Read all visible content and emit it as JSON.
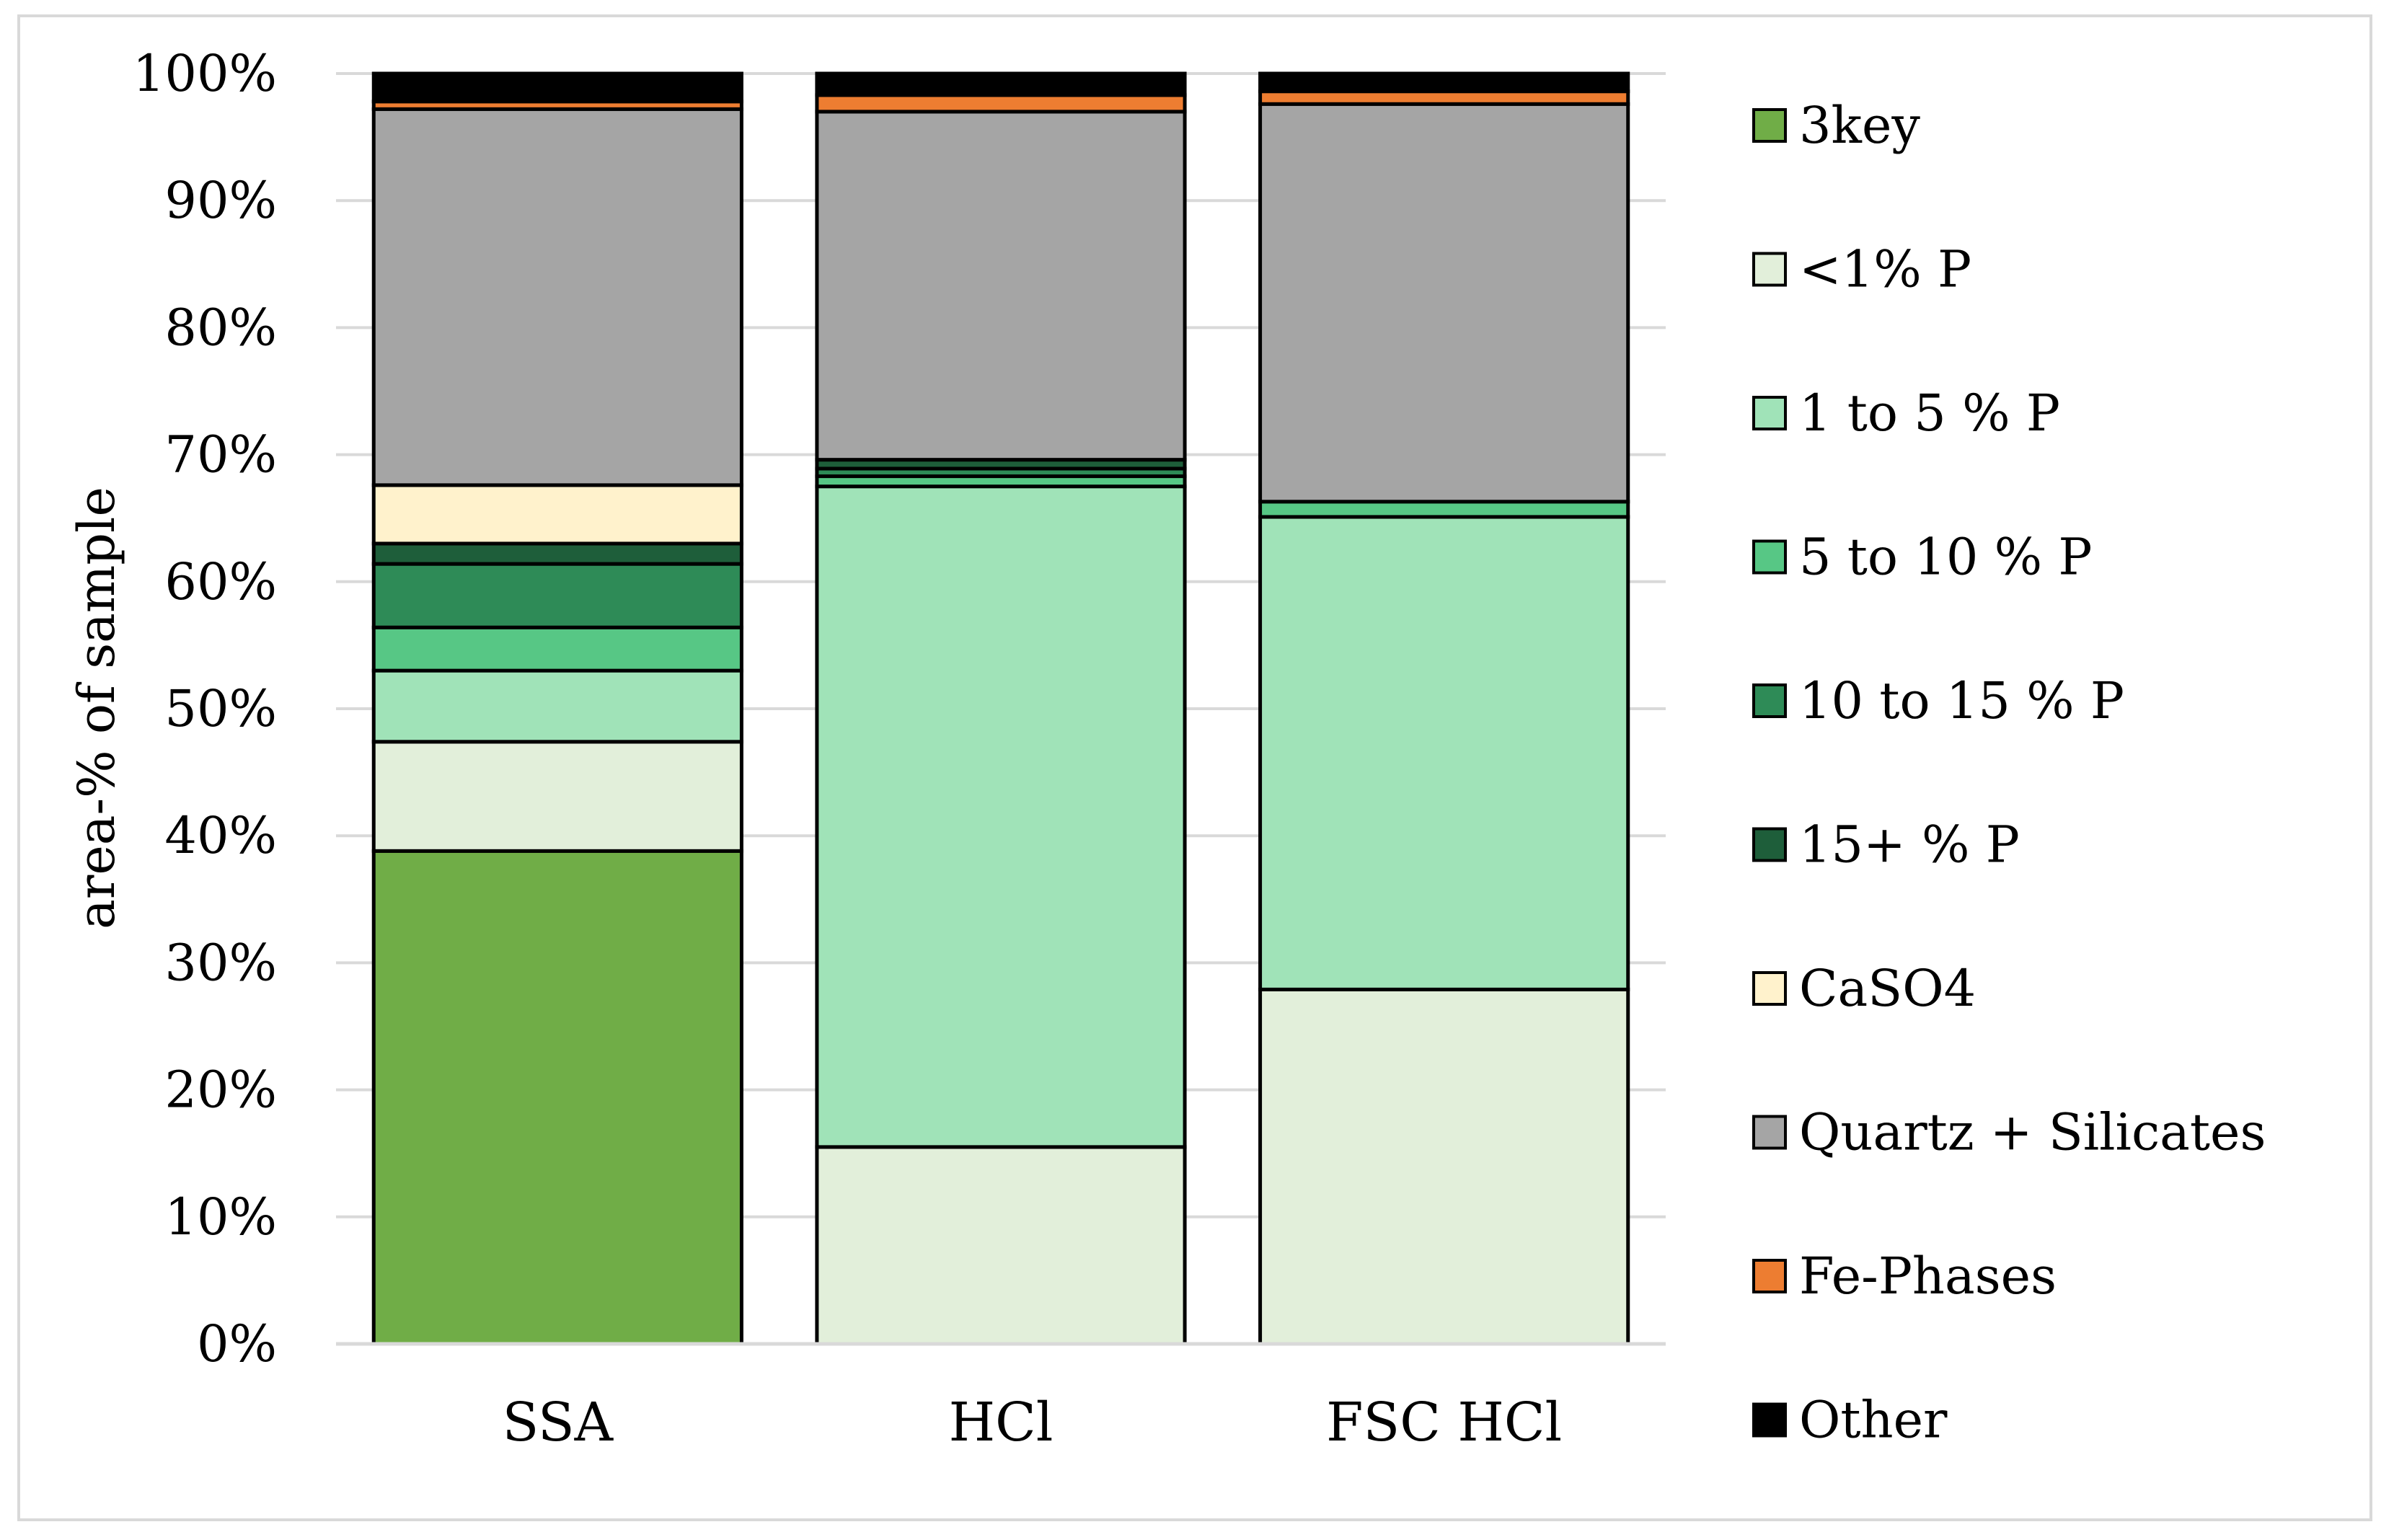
{
  "chart_data": {
    "type": "bar",
    "stacked": true,
    "title": "",
    "xlabel": "",
    "ylabel": "area-% of sample",
    "ylim": [
      0,
      100
    ],
    "yticks": [
      "0%",
      "10%",
      "20%",
      "30%",
      "40%",
      "50%",
      "60%",
      "70%",
      "80%",
      "90%",
      "100%"
    ],
    "grid": true,
    "legend_position": "right",
    "categories": [
      "SSA",
      "HCl",
      "FSC HCl"
    ],
    "series": [
      {
        "name": "3key",
        "color": "#70AD47",
        "values": [
          38.8,
          0,
          0
        ]
      },
      {
        "name": "<1% P",
        "color": "#E2EFDA",
        "values": [
          8.6,
          15.5,
          27.9
        ]
      },
      {
        "name": "1 to 5 % P",
        "color": "#A0E3B8",
        "values": [
          5.6,
          52.0,
          37.2
        ]
      },
      {
        "name": "5 to 10 % P",
        "color": "#57C785",
        "values": [
          3.4,
          0.8,
          1.2
        ]
      },
      {
        "name": "10 to 15 % P",
        "color": "#2E8B57",
        "values": [
          5.0,
          0.6,
          0
        ]
      },
      {
        "name": "15+ % P",
        "color": "#1E5E3A",
        "values": [
          1.6,
          0.7,
          0
        ]
      },
      {
        "name": "CaSO4",
        "color": "#FFF2CC",
        "values": [
          4.6,
          0,
          0
        ]
      },
      {
        "name": "Quartz + Silicates",
        "color": "#A5A5A5",
        "values": [
          29.6,
          27.4,
          31.3
        ]
      },
      {
        "name": "Fe-Phases",
        "color": "#ED7D31",
        "values": [
          0.6,
          1.3,
          1.0
        ]
      },
      {
        "name": "Other",
        "color": "#000000",
        "values": [
          2.2,
          1.7,
          1.4
        ]
      }
    ]
  }
}
